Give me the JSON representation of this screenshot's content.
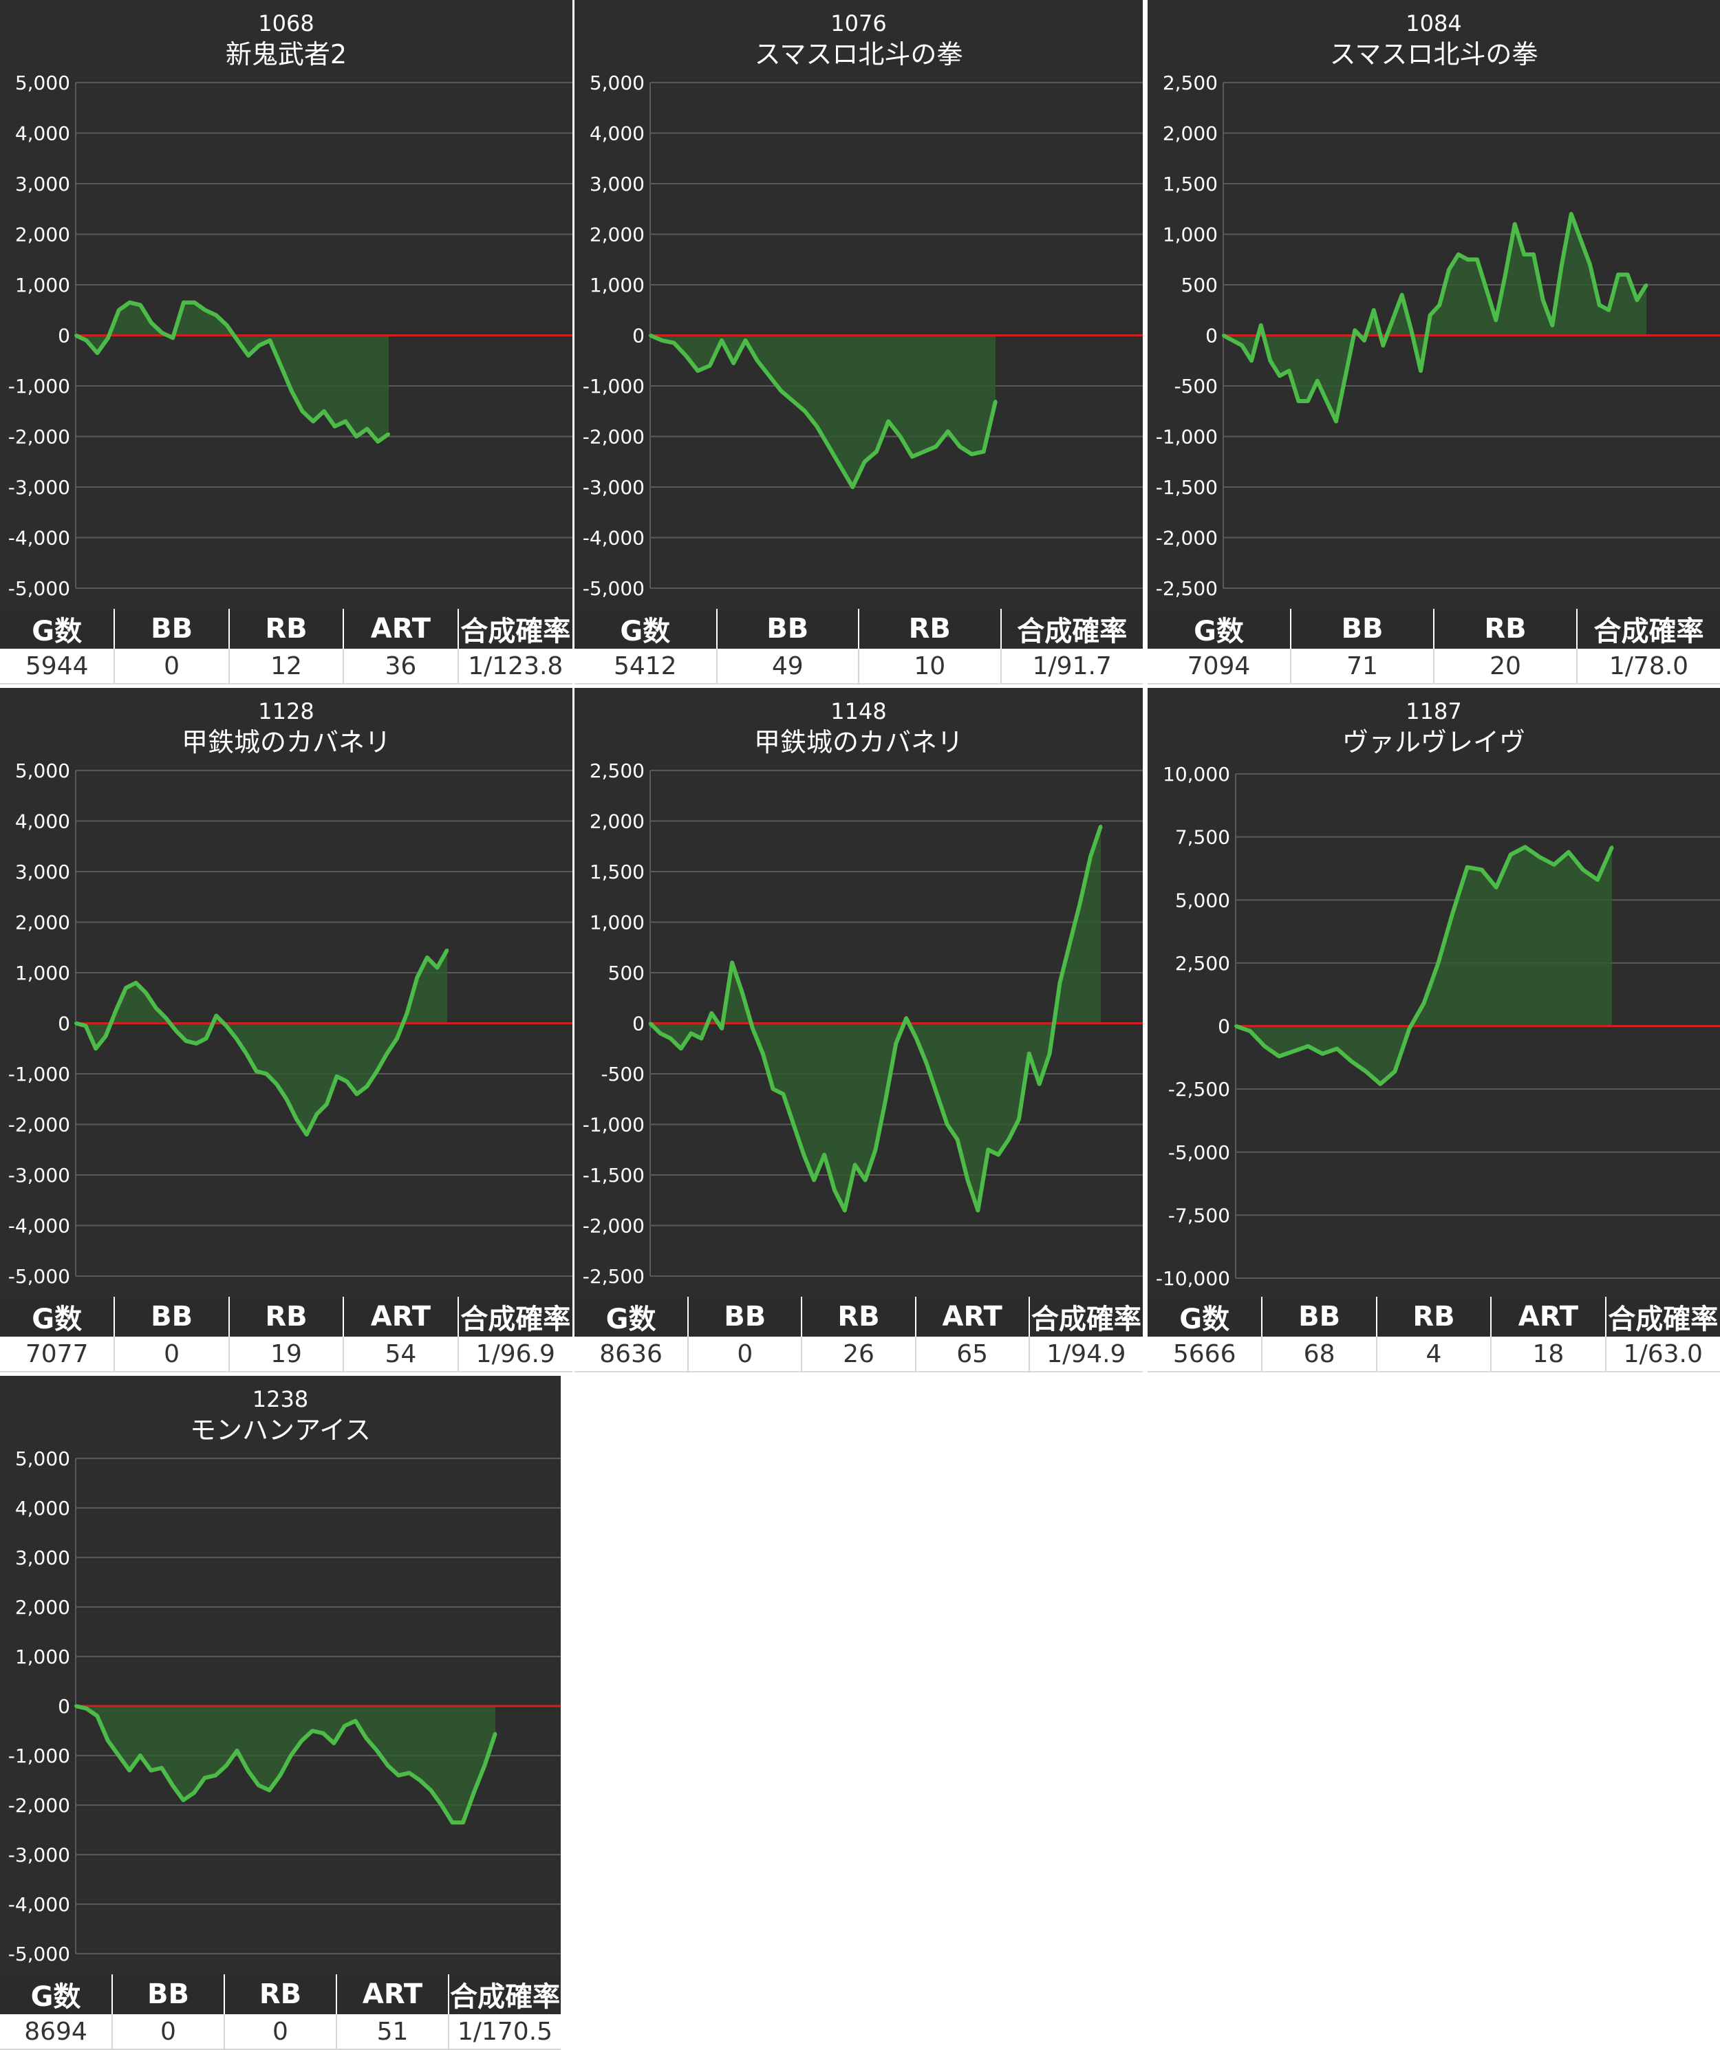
{
  "colors": {
    "panel_bg": "#2d2d2d",
    "line": "#4cbb48",
    "fill": "#2f5a2f",
    "zero_line": "#cc2222",
    "grid": "#5a5a5a",
    "text": "#ffffff"
  },
  "panels": [
    {
      "id": "1068",
      "name": "新鬼武者2",
      "stats": {
        "headers": [
          "G数",
          "BB",
          "RB",
          "ART",
          "合成確率"
        ],
        "values": [
          "5944",
          "0",
          "12",
          "36",
          "1/123.8"
        ]
      },
      "chart_data": {
        "type": "area",
        "ylim": [
          -5000,
          5000
        ],
        "y_ticks": [
          "5,000",
          "4,000",
          "3,000",
          "2,000",
          "1,000",
          "0",
          "-1,000",
          "-2,000",
          "-3,000",
          "-4,000",
          "-5,000"
        ],
        "values": [
          0,
          -100,
          -350,
          -50,
          500,
          650,
          600,
          250,
          50,
          -50,
          650,
          650,
          500,
          400,
          200,
          -100,
          -400,
          -200,
          -100,
          -600,
          -1100,
          -1500,
          -1700,
          -1500,
          -1800,
          -1700,
          -2000,
          -1850,
          -2100,
          -1950
        ]
      }
    },
    {
      "id": "1076",
      "name": "スマスロ北斗の拳",
      "stats": {
        "headers": [
          "G数",
          "BB",
          "RB",
          "合成確率"
        ],
        "values": [
          "5412",
          "49",
          "10",
          "1/91.7"
        ]
      },
      "chart_data": {
        "type": "area",
        "ylim": [
          -5000,
          5000
        ],
        "y_ticks": [
          "5,000",
          "4,000",
          "3,000",
          "2,000",
          "1,000",
          "0",
          "-1,000",
          "-2,000",
          "-3,000",
          "-4,000",
          "-5,000"
        ],
        "values": [
          0,
          -100,
          -150,
          -400,
          -700,
          -600,
          -100,
          -550,
          -100,
          -500,
          -800,
          -1100,
          -1300,
          -1500,
          -1800,
          -2200,
          -2600,
          -3000,
          -2500,
          -2300,
          -1700,
          -2000,
          -2400,
          -2300,
          -2200,
          -1900,
          -2200,
          -2350,
          -2300,
          -1300
        ]
      }
    },
    {
      "id": "1084",
      "name": "スマスロ北斗の拳",
      "stats": {
        "headers": [
          "G数",
          "BB",
          "RB",
          "合成確率"
        ],
        "values": [
          "7094",
          "71",
          "20",
          "1/78.0"
        ]
      },
      "chart_data": {
        "type": "area",
        "ylim": [
          -2500,
          2500
        ],
        "y_ticks": [
          "2,500",
          "2,000",
          "1,500",
          "1,000",
          "500",
          "0",
          "-500",
          "-1,000",
          "-1,500",
          "-2,000",
          "-2,500"
        ],
        "values": [
          0,
          -50,
          -100,
          -250,
          100,
          -250,
          -400,
          -350,
          -650,
          -650,
          -450,
          -650,
          -850,
          -400,
          50,
          -50,
          250,
          -100,
          150,
          400,
          50,
          -350,
          200,
          300,
          650,
          800,
          750,
          750,
          450,
          150,
          600,
          1100,
          800,
          800,
          350,
          100,
          700,
          1200,
          950,
          700,
          300,
          250,
          600,
          600,
          350,
          500
        ]
      }
    },
    {
      "id": "1128",
      "name": "甲鉄城のカバネリ",
      "stats": {
        "headers": [
          "G数",
          "BB",
          "RB",
          "ART",
          "合成確率"
        ],
        "values": [
          "7077",
          "0",
          "19",
          "54",
          "1/96.9"
        ]
      },
      "chart_data": {
        "type": "area",
        "ylim": [
          -5000,
          5000
        ],
        "y_ticks": [
          "5,000",
          "4,000",
          "3,000",
          "2,000",
          "1,000",
          "0",
          "-1,000",
          "-2,000",
          "-3,000",
          "-4,000",
          "-5,000"
        ],
        "values": [
          0,
          -50,
          -500,
          -250,
          250,
          700,
          800,
          600,
          300,
          100,
          -150,
          -350,
          -400,
          -300,
          150,
          -50,
          -300,
          -600,
          -950,
          -1000,
          -1200,
          -1500,
          -1900,
          -2200,
          -1800,
          -1600,
          -1050,
          -1150,
          -1400,
          -1250,
          -950,
          -600,
          -300,
          200,
          900,
          1300,
          1100,
          1450
        ]
      }
    },
    {
      "id": "1148",
      "name": "甲鉄城のカバネリ",
      "stats": {
        "headers": [
          "G数",
          "BB",
          "RB",
          "ART",
          "合成確率"
        ],
        "values": [
          "8636",
          "0",
          "26",
          "65",
          "1/94.9"
        ]
      },
      "chart_data": {
        "type": "area",
        "ylim": [
          -2500,
          2500
        ],
        "y_ticks": [
          "2,500",
          "2,000",
          "1,500",
          "1,000",
          "500",
          "0",
          "-500",
          "-1,000",
          "-1,500",
          "-2,000",
          "-2,500"
        ],
        "values": [
          0,
          -100,
          -150,
          -250,
          -100,
          -150,
          100,
          -50,
          600,
          300,
          -50,
          -300,
          -650,
          -700,
          -1000,
          -1300,
          -1550,
          -1300,
          -1650,
          -1850,
          -1400,
          -1550,
          -1250,
          -750,
          -200,
          50,
          -150,
          -400,
          -700,
          -1000,
          -1150,
          -1550,
          -1850,
          -1250,
          -1300,
          -1150,
          -950,
          -300,
          -600,
          -300,
          400,
          800,
          1200,
          1650,
          1950
        ]
      }
    },
    {
      "id": "1187",
      "name": "ヴァルヴレイヴ",
      "stats": {
        "headers": [
          "G数",
          "BB",
          "RB",
          "ART",
          "合成確率"
        ],
        "values": [
          "5666",
          "68",
          "4",
          "18",
          "1/63.0"
        ]
      },
      "chart_data": {
        "type": "area",
        "ylim": [
          -10000,
          10000
        ],
        "y_ticks": [
          "10,000",
          "7,500",
          "5,000",
          "2,500",
          "0",
          "-2,500",
          "-5,000",
          "-7,500",
          "-10,000"
        ],
        "values": [
          0,
          -200,
          -800,
          -1200,
          -1000,
          -800,
          -1100,
          -900,
          -1400,
          -1800,
          -2300,
          -1800,
          -100,
          900,
          2500,
          4500,
          6300,
          6200,
          5500,
          6800,
          7100,
          6700,
          6400,
          6900,
          6200,
          5800,
          7100
        ]
      }
    },
    {
      "id": "1238",
      "name": "モンハンアイス",
      "stats": {
        "headers": [
          "G数",
          "BB",
          "RB",
          "ART",
          "合成確率"
        ],
        "values": [
          "8694",
          "0",
          "0",
          "51",
          "1/170.5"
        ]
      },
      "chart_data": {
        "type": "area",
        "ylim": [
          -5000,
          5000
        ],
        "y_ticks": [
          "5,000",
          "4,000",
          "3,000",
          "2,000",
          "1,000",
          "0",
          "-1,000",
          "-2,000",
          "-3,000",
          "-4,000",
          "-5,000"
        ],
        "values": [
          0,
          -50,
          -200,
          -700,
          -1000,
          -1300,
          -1000,
          -1300,
          -1250,
          -1600,
          -1900,
          -1750,
          -1450,
          -1400,
          -1200,
          -900,
          -1300,
          -1600,
          -1700,
          -1400,
          -1000,
          -700,
          -500,
          -550,
          -750,
          -400,
          -300,
          -650,
          -900,
          -1200,
          -1400,
          -1350,
          -1500,
          -1700,
          -2000,
          -2350,
          -2350,
          -1750,
          -1200,
          -550
        ]
      }
    }
  ]
}
